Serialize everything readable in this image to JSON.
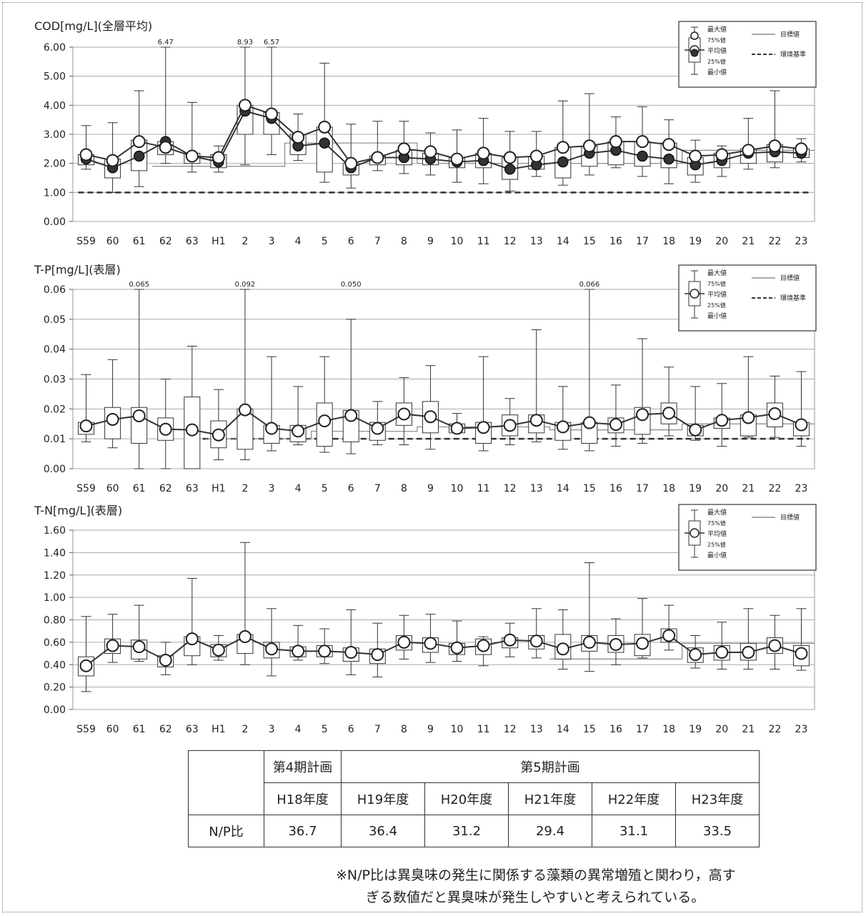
{
  "x_categories": [
    "S59",
    "60",
    "61",
    "62",
    "63",
    "H1",
    "2",
    "3",
    "4",
    "5",
    "6",
    "7",
    "8",
    "9",
    "10",
    "11",
    "12",
    "13",
    "14",
    "15",
    "16",
    "17",
    "18",
    "19",
    "20",
    "21",
    "22",
    "23"
  ],
  "chart_data": [
    {
      "type": "box",
      "title": "COD[mg/L](全層平均)",
      "ylim": [
        0,
        6
      ],
      "yticks": [
        "0.00",
        "1.00",
        "2.00",
        "3.00",
        "4.00",
        "5.00",
        "6.00"
      ],
      "ytick_values": [
        0,
        1,
        2,
        3,
        4,
        5,
        6
      ],
      "grid": true,
      "legend": {
        "labels": [
          "最大値",
          "75%値",
          "平均値",
          "25%値",
          "最小値"
        ],
        "lines": [
          "目標値",
          "環境基準"
        ]
      },
      "series": [
        {
          "name": "平均値",
          "kind": "open",
          "values": [
            2.3,
            2.1,
            2.75,
            2.55,
            2.25,
            2.2,
            4.0,
            3.7,
            2.9,
            3.25,
            2.0,
            2.2,
            2.5,
            2.4,
            2.15,
            2.35,
            2.2,
            2.25,
            2.55,
            2.6,
            2.75,
            2.75,
            2.65,
            2.25,
            2.3,
            2.45,
            2.6,
            2.5
          ]
        },
        {
          "kind": "filled",
          "values": [
            2.15,
            1.85,
            2.25,
            2.75,
            2.25,
            2.05,
            3.8,
            3.55,
            2.6,
            2.7,
            1.85,
            2.2,
            2.2,
            2.15,
            2.05,
            2.1,
            1.8,
            1.95,
            2.05,
            2.35,
            2.45,
            2.25,
            2.15,
            1.95,
            2.1,
            2.35,
            2.4,
            2.35
          ]
        }
      ],
      "max": [
        3.3,
        3.4,
        4.5,
        6.47,
        4.1,
        2.6,
        8.93,
        6.57,
        3.7,
        5.45,
        3.35,
        3.45,
        3.45,
        3.05,
        3.15,
        3.55,
        3.1,
        3.1,
        4.15,
        4.4,
        3.6,
        3.95,
        3.5,
        2.8,
        2.6,
        3.55,
        4.5,
        2.85
      ],
      "q3": [
        2.3,
        2.15,
        2.8,
        2.75,
        2.35,
        2.3,
        4.0,
        3.75,
        3.0,
        3.25,
        2.0,
        2.25,
        2.45,
        2.35,
        2.2,
        2.35,
        2.2,
        2.25,
        2.55,
        2.6,
        2.75,
        2.75,
        2.7,
        2.2,
        2.35,
        2.5,
        2.65,
        2.5
      ],
      "q1": [
        1.95,
        1.5,
        1.75,
        2.3,
        2.0,
        1.85,
        3.0,
        3.0,
        2.3,
        1.7,
        1.6,
        1.95,
        1.95,
        1.95,
        1.85,
        1.85,
        1.45,
        1.8,
        1.5,
        1.9,
        1.95,
        1.9,
        1.85,
        1.6,
        1.85,
        2.0,
        2.05,
        2.2
      ],
      "min": [
        1.8,
        1.0,
        1.2,
        2.0,
        1.7,
        1.7,
        1.95,
        2.3,
        2.1,
        1.35,
        1.15,
        1.75,
        1.65,
        1.6,
        1.35,
        1.3,
        1.05,
        1.55,
        1.25,
        1.6,
        1.85,
        1.55,
        1.3,
        1.35,
        1.55,
        1.8,
        1.85,
        2.05
      ],
      "outlier_labels": [
        {
          "index": 3,
          "label": "6.47"
        },
        {
          "index": 6,
          "label": "8.93"
        },
        {
          "index": 7,
          "label": "6.57"
        }
      ],
      "target": [
        null,
        null,
        null,
        1.9,
        1.9,
        1.9,
        1.9,
        1.9,
        2.7,
        2.7,
        2.7,
        2.7,
        2.7,
        2.0,
        2.0,
        2.0,
        2.0,
        2.0,
        2.0,
        2.0,
        2.0,
        2.0,
        2.0,
        2.45,
        2.45,
        2.45,
        2.45,
        2.45
      ],
      "env_standard": 1.0
    },
    {
      "type": "box",
      "title": "T-P[mg/L](表層)",
      "ylim": [
        0,
        0.06
      ],
      "yticks": [
        "0.00",
        "0.01",
        "0.02",
        "0.03",
        "0.04",
        "0.05",
        "0.06"
      ],
      "ytick_values": [
        0,
        0.01,
        0.02,
        0.03,
        0.04,
        0.05,
        0.06
      ],
      "grid": true,
      "legend": {
        "labels": [
          "最大値",
          "75%値",
          "平均値",
          "25%値",
          "最小値"
        ],
        "lines": [
          "目標値",
          "環境基準"
        ]
      },
      "series": [
        {
          "name": "平均値",
          "kind": "open",
          "values": [
            0.0143,
            0.0165,
            0.0177,
            0.0132,
            0.013,
            0.0113,
            0.0197,
            0.0135,
            0.0126,
            0.016,
            0.0178,
            0.0135,
            0.0183,
            0.0174,
            0.0135,
            0.0138,
            0.0145,
            0.0162,
            0.014,
            0.0154,
            0.0148,
            0.0181,
            0.0186,
            0.013,
            0.0162,
            0.0171,
            0.0184,
            0.0147
          ]
        }
      ],
      "max": [
        0.0315,
        0.0365,
        0.065,
        0.03,
        0.041,
        0.0265,
        0.092,
        0.0375,
        0.0275,
        0.0375,
        0.05,
        0.0225,
        0.0305,
        0.0345,
        0.0185,
        0.0375,
        0.0235,
        0.0465,
        0.0275,
        0.066,
        0.028,
        0.0435,
        0.034,
        0.0275,
        0.0285,
        0.0375,
        0.031,
        0.0325
      ],
      "q3": [
        0.0155,
        0.0205,
        0.0205,
        0.017,
        0.024,
        0.016,
        0.02,
        0.0145,
        0.0145,
        0.022,
        0.0195,
        0.0155,
        0.022,
        0.0225,
        0.015,
        0.0155,
        0.018,
        0.018,
        0.0155,
        0.0155,
        0.017,
        0.0205,
        0.022,
        0.0145,
        0.017,
        0.018,
        0.022,
        0.0155
      ],
      "q1": [
        0.0115,
        0.01,
        0.0085,
        0.0095,
        0.0,
        0.007,
        0.0065,
        0.0085,
        0.009,
        0.0075,
        0.009,
        0.0095,
        0.0145,
        0.012,
        0.012,
        0.0085,
        0.011,
        0.012,
        0.0095,
        0.0085,
        0.012,
        0.0115,
        0.015,
        0.011,
        0.0135,
        0.011,
        0.014,
        0.011
      ],
      "min": [
        0.009,
        0.007,
        0.0,
        0.0,
        0.0,
        0.003,
        0.003,
        0.006,
        0.008,
        0.0055,
        0.005,
        0.008,
        0.008,
        0.0065,
        0.012,
        0.006,
        0.008,
        0.009,
        0.0065,
        0.006,
        0.0075,
        0.0085,
        0.011,
        0.0095,
        0.0075,
        0.0105,
        0.0105,
        0.0075
      ],
      "outlier_labels": [
        {
          "index": 2,
          "label": "0.065"
        },
        {
          "index": 6,
          "label": "0.092"
        },
        {
          "index": 10,
          "label": "0.050"
        },
        {
          "index": 19,
          "label": "0.066"
        }
      ],
      "target": [
        null,
        null,
        null,
        null,
        null,
        0.01,
        0.01,
        0.01,
        0.01,
        0.0125,
        0.0125,
        0.0125,
        0.0125,
        0.014,
        0.014,
        0.014,
        0.014,
        0.014,
        0.013,
        0.013,
        0.013,
        0.013,
        0.013,
        0.015,
        0.015,
        0.015,
        0.015,
        0.015
      ],
      "env_standard": 0.01,
      "env_start": 4
    },
    {
      "type": "box",
      "title": "T-N[mg/L](表層)",
      "ylim": [
        0,
        1.6
      ],
      "yticks": [
        "0.00",
        "0.20",
        "0.40",
        "0.60",
        "0.80",
        "1.00",
        "1.20",
        "1.40",
        "1.60"
      ],
      "ytick_values": [
        0,
        0.2,
        0.4,
        0.6,
        0.8,
        1.0,
        1.2,
        1.4,
        1.6
      ],
      "grid": true,
      "legend": {
        "labels": [
          "最大値",
          "75%値",
          "平均値",
          "25%値",
          "最小値"
        ],
        "lines": [
          "目標値"
        ]
      },
      "series": [
        {
          "name": "平均値",
          "kind": "open",
          "values": [
            0.39,
            0.57,
            0.56,
            0.44,
            0.63,
            0.53,
            0.65,
            0.54,
            0.52,
            0.52,
            0.51,
            0.49,
            0.6,
            0.59,
            0.55,
            0.57,
            0.62,
            0.61,
            0.54,
            0.6,
            0.58,
            0.59,
            0.66,
            0.49,
            0.51,
            0.51,
            0.57,
            0.5
          ]
        }
      ],
      "max": [
        0.83,
        0.85,
        0.93,
        0.6,
        1.17,
        0.66,
        1.49,
        0.9,
        0.75,
        0.72,
        0.89,
        0.77,
        0.84,
        0.85,
        0.79,
        0.65,
        0.77,
        0.9,
        0.89,
        1.31,
        0.81,
        0.99,
        0.93,
        0.66,
        0.78,
        0.9,
        0.84,
        0.9
      ],
      "q3": [
        0.47,
        0.63,
        0.62,
        0.48,
        0.65,
        0.58,
        0.67,
        0.6,
        0.56,
        0.57,
        0.55,
        0.54,
        0.66,
        0.64,
        0.59,
        0.63,
        0.64,
        0.66,
        0.67,
        0.66,
        0.66,
        0.67,
        0.72,
        0.55,
        0.57,
        0.59,
        0.64,
        0.57
      ],
      "q1": [
        0.3,
        0.5,
        0.45,
        0.38,
        0.48,
        0.47,
        0.5,
        0.46,
        0.47,
        0.47,
        0.43,
        0.41,
        0.53,
        0.51,
        0.49,
        0.49,
        0.55,
        0.54,
        0.45,
        0.52,
        0.51,
        0.48,
        0.6,
        0.42,
        0.44,
        0.44,
        0.5,
        0.39
      ],
      "min": [
        0.16,
        0.42,
        0.43,
        0.31,
        0.4,
        0.44,
        0.4,
        0.3,
        0.44,
        0.41,
        0.31,
        0.29,
        0.45,
        0.42,
        0.43,
        0.39,
        0.47,
        0.46,
        0.36,
        0.34,
        0.4,
        0.46,
        0.53,
        0.37,
        0.36,
        0.36,
        0.36,
        0.35
      ],
      "outlier_labels": [],
      "target": [
        null,
        null,
        null,
        null,
        null,
        null,
        null,
        null,
        null,
        null,
        null,
        null,
        null,
        null,
        null,
        null,
        null,
        null,
        0.45,
        0.45,
        0.45,
        0.45,
        0.45,
        0.59,
        0.59,
        0.59,
        0.59,
        0.59
      ]
    }
  ],
  "np_table": {
    "period4": "第4期計画",
    "period5": "第5期計画",
    "years": [
      "H18年度",
      "H19年度",
      "H20年度",
      "H21年度",
      "H22年度",
      "H23年度"
    ],
    "row_label": "N/P比",
    "values": [
      "36.7",
      "36.4",
      "31.2",
      "29.4",
      "31.1",
      "33.5"
    ]
  },
  "note": [
    "※N/P比は異臭味の発生に関係する藻類の異常増殖と関わり，高す",
    "ぎる数値だと異臭味が発生しやすいと考えられている。"
  ]
}
